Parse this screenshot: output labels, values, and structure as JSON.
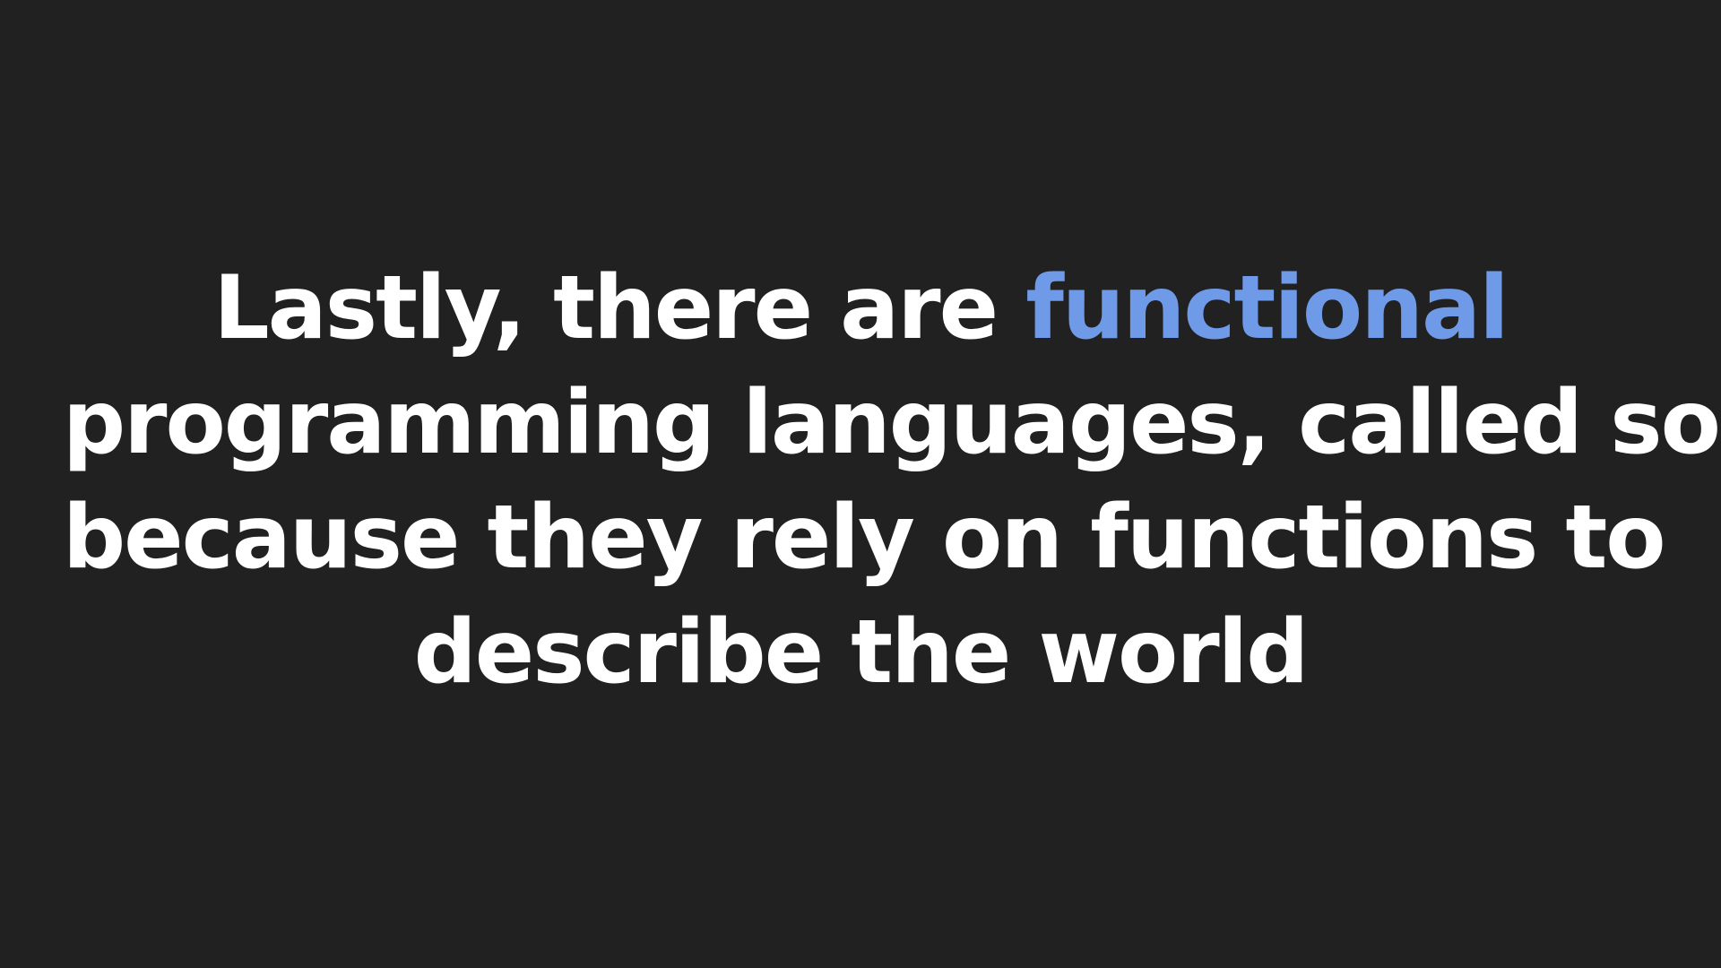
{
  "colors": {
    "background": "#212121",
    "text": "#ffffff",
    "accent": "#6f9ae8"
  },
  "statement": {
    "line1_before": "Lastly, there are ",
    "line1_highlight": "functional",
    "line2": "programming languages, called so",
    "line3": "because they rely on functions to",
    "line4": "describe the world"
  }
}
